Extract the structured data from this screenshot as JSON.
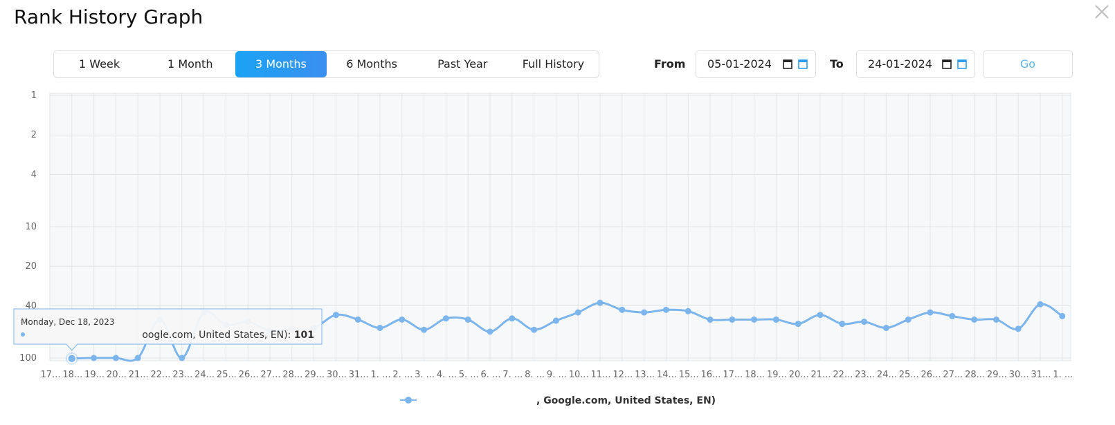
{
  "header": {
    "title": "Rank History Graph"
  },
  "tabs": [
    "1 Week",
    "1 Month",
    "3 Months",
    "6 Months",
    "Past Year",
    "Full History"
  ],
  "active_tab": 2,
  "range": {
    "from_label": "From",
    "from_value": "05-01-2024",
    "to_label": "To",
    "to_value": "24-01-2024",
    "go": "Go"
  },
  "chart_data": {
    "type": "line",
    "categories": [
      "17...",
      "18...",
      "19...",
      "20...",
      "21...",
      "22...",
      "23...",
      "24...",
      "25...",
      "26...",
      "27...",
      "28...",
      "29...",
      "30...",
      "31...",
      "1. ...",
      "2. ...",
      "3. ...",
      "4. ...",
      "5. ...",
      "6. ...",
      "7. ...",
      "8. ...",
      "9. ...",
      "10...",
      "11...",
      "12...",
      "13...",
      "14...",
      "15...",
      "16...",
      "17...",
      "18...",
      "19...",
      "20...",
      "21...",
      "22...",
      "23...",
      "24...",
      "25...",
      "26...",
      "27...",
      "28...",
      "29...",
      "30...",
      "31...",
      "1. ..."
    ],
    "series": [
      {
        "name": ", Google.com, United States, EN)",
        "color": "#7cb5ec",
        "values": [
          null,
          101,
          100,
          100,
          100,
          51,
          100,
          45,
          56,
          53,
          62,
          60,
          59,
          47,
          51,
          59,
          51,
          61,
          50,
          51,
          63,
          50,
          61,
          52,
          45,
          38,
          43,
          45,
          43,
          44,
          51,
          51,
          51,
          51,
          55,
          47,
          55,
          53,
          59,
          51,
          45,
          48,
          51,
          51,
          60,
          39,
          48
        ]
      }
    ],
    "ylim": [
      1,
      100
    ],
    "yticks": [
      1,
      2,
      4,
      10,
      20,
      40,
      100
    ],
    "log_scale": true,
    "reversed": true,
    "grid": true,
    "tooltip": {
      "date": "Monday, Dec 18, 2023",
      "label": "oogle.com, United States, EN): "
    }
  }
}
